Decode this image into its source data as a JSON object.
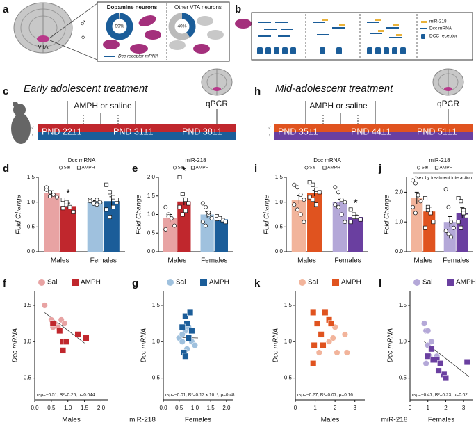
{
  "panel_labels": [
    "a",
    "b",
    "c",
    "d",
    "e",
    "f",
    "g",
    "h",
    "i",
    "j",
    "k",
    "l"
  ],
  "panel_a": {
    "region": "VTA",
    "male": "♂",
    "female": "♀",
    "dopamine": {
      "title": "Dopamine neurons",
      "value": 99,
      "value_label": "99%"
    },
    "other": {
      "title": "Other VTA neurons",
      "value": 40,
      "value_label": "40%"
    },
    "legend": "Dcc receptor mRNA"
  },
  "panel_b": {
    "legend": [
      "miR-218",
      "Dcc mRNA",
      "DCC receptor"
    ]
  },
  "panel_c": {
    "title": "Early adolescent treatment",
    "treatment": "AMPH or saline",
    "assay": "qPCR",
    "male": "♂",
    "female": "♀",
    "timepoints": [
      "PND 22±1",
      "PND 31±1",
      "PND 38±1"
    ]
  },
  "panel_h": {
    "title": "Mid-adolescent treatment",
    "treatment": "AMPH or saline",
    "assay": "qPCR",
    "male": "♂",
    "female": "♀",
    "timepoints": [
      "PND 35±1",
      "PND 44±1",
      "PND 51±1"
    ]
  },
  "chart_data": [
    {
      "type": "bar",
      "title": "Dcc mRNA",
      "ylabel": "Fold Change",
      "categories": [
        "Males",
        "Females"
      ],
      "series": [
        {
          "name": "Sal",
          "marker": "circle",
          "colors": [
            "#e8a3a3",
            "#9fc1de"
          ],
          "values": [
            1.18,
            1.0
          ],
          "errors": [
            0.05,
            0.03
          ],
          "points": [
            [
              1.3,
              1.2,
              1.15,
              1.1,
              1.25,
              1.12
            ],
            [
              1.05,
              0.98,
              0.95,
              1.0,
              1.02,
              0.97,
              1.05
            ]
          ]
        },
        {
          "name": "AMPH",
          "marker": "square",
          "colors": [
            "#c0272d",
            "#1b5d99"
          ],
          "values": [
            0.92,
            1.02
          ],
          "errors": [
            0.06,
            0.09
          ],
          "points": [
            [
              1.05,
              0.95,
              0.9,
              0.8,
              0.88,
              1.0
            ],
            [
              1.35,
              1.2,
              1.1,
              1.0,
              0.85,
              0.7,
              0.9,
              1.05
            ]
          ]
        }
      ],
      "annotations": [
        {
          "text": "*",
          "category": "Males",
          "series": "AMPH"
        }
      ],
      "ylim": [
        0,
        1.5
      ],
      "yticks": [
        {
          "value": 0,
          "label": "0.0"
        },
        0.5,
        {
          "value": 1,
          "label": "1.0"
        },
        1.5
      ]
    },
    {
      "type": "bar",
      "title": "miR-218",
      "ylabel": "Fold Change",
      "categories": [
        "Males",
        "Females"
      ],
      "series": [
        {
          "name": "Sal",
          "marker": "circle",
          "colors": [
            "#e8a3a3",
            "#9fc1de"
          ],
          "values": [
            0.9,
            1.0
          ],
          "errors": [
            0.1,
            0.08
          ],
          "points": [
            [
              1.2,
              1.0,
              0.9,
              0.7,
              0.6,
              0.95
            ],
            [
              1.3,
              1.2,
              1.0,
              0.9,
              0.8,
              0.7,
              1.05
            ]
          ]
        },
        {
          "name": "AMPH",
          "marker": "square",
          "colors": [
            "#c0272d",
            "#1b5d99"
          ],
          "values": [
            1.35,
            0.87
          ],
          "errors": [
            0.1,
            0.03
          ],
          "points": [
            [
              2.0,
              1.55,
              1.4,
              1.3,
              1.2,
              1.0,
              1.1
            ],
            [
              0.95,
              0.9,
              0.85,
              0.8,
              0.88,
              0.9
            ]
          ]
        }
      ],
      "annotations": [
        {
          "text": "*",
          "category": "Males",
          "series": "AMPH"
        }
      ],
      "ylim": [
        0,
        2
      ],
      "yticks": [
        {
          "value": 0,
          "label": "0.0"
        },
        0.5,
        {
          "value": 1,
          "label": "1.0"
        },
        1.5,
        {
          "value": 2,
          "label": "2.0"
        }
      ]
    },
    {
      "type": "scatter",
      "ylabel": "Dcc mRNA",
      "group": "Males",
      "xlabel": "miR-218",
      "series": [
        {
          "name": "Sal",
          "marker": "circle",
          "color": "#e8a3a3",
          "x": [
            0.3,
            0.5,
            0.6,
            0.7,
            0.8,
            0.9,
            0.55
          ],
          "y": [
            1.5,
            1.3,
            1.25,
            1.2,
            1.3,
            1.25,
            1.2
          ]
        },
        {
          "name": "AMPH",
          "marker": "square",
          "color": "#c0272d",
          "x": [
            0.55,
            0.75,
            0.85,
            0.95,
            1.3,
            1.55,
            0.85
          ],
          "y": [
            1.25,
            1.15,
            1.0,
            1.0,
            1.1,
            1.05,
            0.88
          ]
        }
      ],
      "trend": {
        "x": [
          0.3,
          1.5
        ],
        "y": [
          1.4,
          0.98
        ]
      },
      "stats": "rsp=−0.51; R²=0.26; p=0.044",
      "xlim": [
        0,
        2.2
      ],
      "xticks": [
        {
          "value": 0,
          "label": "0.0"
        },
        0.5,
        {
          "value": 1,
          "label": "1.0"
        },
        1.5,
        {
          "value": 2,
          "label": "2.0"
        }
      ],
      "ylim": [
        0.2,
        1.7
      ],
      "yticks": [
        0.5,
        {
          "value": 1,
          "label": "1.0"
        },
        1.5
      ]
    },
    {
      "type": "scatter",
      "ylabel": "Dcc mRNA",
      "group": "Females",
      "series": [
        {
          "name": "Sal",
          "marker": "circle",
          "color": "#9fc1de",
          "x": [
            0.5,
            0.6,
            0.7,
            0.8,
            0.9,
            1.0,
            0.75,
            0.6
          ],
          "y": [
            1.05,
            1.0,
            1.15,
            1.2,
            1.0,
            0.95,
            0.9,
            1.1
          ]
        },
        {
          "name": "AMPH",
          "marker": "square",
          "color": "#1b5d99",
          "x": [
            0.7,
            0.75,
            0.85,
            0.65,
            0.7,
            0.8,
            0.9,
            0.6
          ],
          "y": [
            1.35,
            1.25,
            1.4,
            0.85,
            0.8,
            1.05,
            1.15,
            1.2
          ]
        }
      ],
      "trend": {
        "x": [
          0.4,
          1.1
        ],
        "y": [
          1.06,
          1.05
        ]
      },
      "stats": "rsp=−0.01; R²=0.12 x 10⁻³; p=0.48",
      "xlim": [
        0,
        2.2
      ],
      "xticks": [
        {
          "value": 0,
          "label": "0.0"
        },
        0.5,
        {
          "value": 1,
          "label": "1.0"
        },
        1.5,
        {
          "value": 2,
          "label": "2.0"
        }
      ],
      "ylim": [
        0.2,
        1.7
      ],
      "yticks": [
        0.5,
        {
          "value": 1,
          "label": "1.0"
        },
        1.5
      ]
    },
    {
      "type": "bar",
      "title": "Dcc mRNA",
      "ylabel": "Fold Change",
      "categories": [
        "Males",
        "Females"
      ],
      "series": [
        {
          "name": "Sal",
          "marker": "circle",
          "colors": [
            "#f2b49b",
            "#b4a8d8"
          ],
          "values": [
            1.05,
            1.0
          ],
          "errors": [
            0.08,
            0.06
          ],
          "points": [
            [
              1.35,
              1.3,
              1.15,
              1.05,
              0.95,
              0.85,
              0.75,
              0.6
            ],
            [
              1.3,
              1.2,
              1.05,
              1.0,
              0.95,
              0.9,
              0.75,
              0.6
            ]
          ]
        },
        {
          "name": "AMPH",
          "marker": "square",
          "colors": [
            "#e0531f",
            "#6a3fa0"
          ],
          "values": [
            1.18,
            0.7
          ],
          "errors": [
            0.06,
            0.04
          ],
          "points": [
            [
              1.4,
              1.35,
              1.25,
              1.2,
              1.1,
              1.05,
              0.95
            ],
            [
              0.85,
              0.75,
              0.7,
              0.65,
              0.6,
              0.7
            ]
          ]
        }
      ],
      "annotations": [
        {
          "text": "*",
          "category": "Females",
          "series": "AMPH"
        }
      ],
      "ylim": [
        0,
        1.5
      ],
      "yticks": [
        {
          "value": 0,
          "label": "0.0"
        },
        0.5,
        {
          "value": 1,
          "label": "1.0"
        },
        1.5
      ]
    },
    {
      "type": "bar",
      "title": "miR-218",
      "ylabel": "Fold Change",
      "categories": [
        "Males",
        "Females"
      ],
      "note": "*sex by treatment interaction",
      "series": [
        {
          "name": "Sal",
          "marker": "circle",
          "colors": [
            "#f2b49b",
            "#b4a8d8"
          ],
          "values": [
            1.8,
            1.0
          ],
          "errors": [
            0.2,
            0.18
          ],
          "points": [
            [
              2.4,
              2.3,
              1.9,
              1.7,
              1.5,
              1.3
            ],
            [
              2.1,
              1.5,
              1.0,
              0.8,
              0.7,
              0.6,
              0.5
            ]
          ]
        },
        {
          "name": "AMPH",
          "marker": "square",
          "colors": [
            "#e0531f",
            "#6a3fa0"
          ],
          "values": [
            1.35,
            1.3
          ],
          "errors": [
            0.15,
            0.18
          ],
          "points": [
            [
              1.8,
              1.5,
              1.3,
              1.0,
              0.8,
              1.4
            ],
            [
              1.8,
              1.7,
              1.4,
              1.2,
              1.0,
              0.8,
              1.3
            ]
          ]
        }
      ],
      "ylim": [
        0,
        2.5
      ],
      "yticks": [
        {
          "value": 0,
          "label": "0.0"
        },
        {
          "value": 1,
          "label": "1.0"
        },
        {
          "value": 2,
          "label": "2.0"
        }
      ]
    },
    {
      "type": "scatter",
      "ylabel": "Dcc mRNA",
      "group": "Males",
      "xlabel": "miR-218",
      "series": [
        {
          "name": "Sal",
          "marker": "circle",
          "color": "#f2b49b",
          "x": [
            1.7,
            1.9,
            2.1,
            2.5,
            2.6,
            1.2,
            2.0
          ],
          "y": [
            1.0,
            1.05,
            0.85,
            1.1,
            0.85,
            0.85,
            1.2
          ]
        },
        {
          "name": "AMPH",
          "marker": "square",
          "color": "#e0531f",
          "x": [
            0.9,
            1.1,
            1.5,
            1.7,
            1.3,
            1.8,
            0.9,
            1.4,
            0.95
          ],
          "y": [
            1.4,
            1.25,
            1.4,
            1.3,
            1.1,
            1.25,
            0.7,
            0.95,
            0.95
          ]
        }
      ],
      "stats": "rsp=−0.27; R²=0.07; p=0.16",
      "xlim": [
        0,
        3.5
      ],
      "xticks": [
        0,
        1,
        2,
        3
      ],
      "ylim": [
        0.2,
        1.7
      ],
      "yticks": [
        0.5,
        {
          "value": 1,
          "label": "1.0"
        },
        1.5
      ]
    },
    {
      "type": "scatter",
      "ylabel": "Dcc mRNA",
      "group": "Females",
      "series": [
        {
          "name": "Sal",
          "marker": "circle",
          "color": "#b4a8d8",
          "x": [
            0.8,
            0.9,
            1.0,
            1.2,
            1.1,
            0.9,
            1.5,
            1.0
          ],
          "y": [
            1.25,
            1.15,
            0.95,
            1.0,
            0.8,
            0.7,
            0.8,
            1.15
          ]
        },
        {
          "name": "AMPH",
          "marker": "square",
          "color": "#6a3fa0",
          "x": [
            1.0,
            1.3,
            1.5,
            1.7,
            1.9,
            2.0,
            3.2,
            1.2,
            1.6
          ],
          "y": [
            0.8,
            0.75,
            0.75,
            0.7,
            0.55,
            0.5,
            0.72,
            0.9,
            0.6
          ]
        }
      ],
      "trend": {
        "x": [
          0.8,
          3.3
        ],
        "y": [
          1.0,
          0.52
        ]
      },
      "stats": "rsp=−0.47; R²=0.23; p=0.02",
      "xlim": [
        0,
        3.5
      ],
      "xticks": [
        0,
        1,
        2,
        3
      ],
      "ylim": [
        0.2,
        1.7
      ],
      "yticks": [
        0.5,
        {
          "value": 1,
          "label": "1.0"
        },
        1.5
      ]
    }
  ]
}
